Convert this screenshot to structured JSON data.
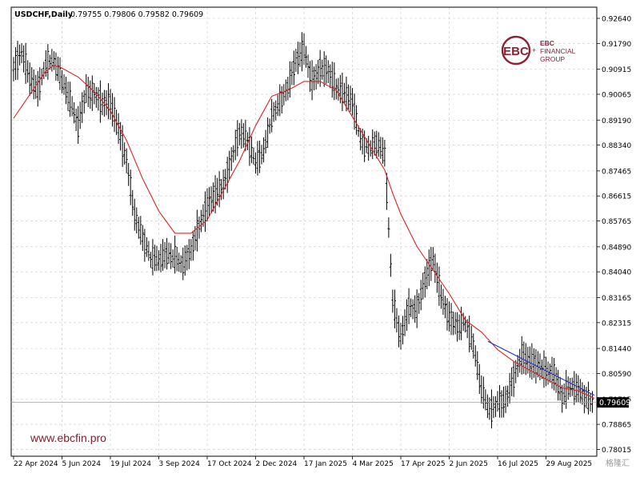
{
  "header": {
    "symbol_tf": "USDCHF,Daily",
    "ohlc": "0.79755 0.79806 0.79582 0.79609"
  },
  "branding": {
    "logo_letters": "EBC",
    "logo_line1": "EBC",
    "logo_line2": "FINANCIAL",
    "logo_line3": "GROUP",
    "website": "www.ebcfin.pro",
    "watermark": "格隆汇",
    "brand_color": "#8b2333"
  },
  "chart_data": {
    "type": "line",
    "title": "USDCHF,Daily",
    "xlabel": "",
    "ylabel": "",
    "ylim": [
      0.78,
      0.9264
    ],
    "grid": true,
    "current_price": "0.79609",
    "price_scale_position": "right",
    "y_ticks": [
      "0.92640",
      "0.91790",
      "0.90915",
      "0.90065",
      "0.89190",
      "0.88340",
      "0.87465",
      "0.86615",
      "0.85765",
      "0.84890",
      "0.84040",
      "0.83165",
      "0.82315",
      "0.81440",
      "0.80590",
      "0.79715",
      "0.78865",
      "0.78015"
    ],
    "x_ticks": [
      "22 Apr 2024",
      "5 Jun 2024",
      "19 Jul 2024",
      "3 Sep 2024",
      "17 Oct 2024",
      "2 Dec 2024",
      "17 Jan 2025",
      "4 Mar 2025",
      "17 Apr 2025",
      "2 Jun 2025",
      "16 Jul 2025",
      "29 Aug 2025"
    ],
    "x_index_range": [
      0,
      72
    ],
    "price_series": {
      "style": "bars",
      "color": "#000000",
      "x": [
        0,
        1,
        2,
        3,
        4,
        5,
        6,
        7,
        8,
        9,
        10,
        11,
        12,
        13,
        14,
        15,
        16,
        17,
        18,
        19,
        20,
        21,
        22,
        23,
        24,
        25,
        26,
        27,
        28,
        29,
        30,
        31,
        32,
        33,
        34,
        35,
        36,
        37,
        38,
        39,
        40,
        41,
        42,
        43,
        44,
        45,
        46,
        47,
        48,
        49,
        50,
        51,
        52,
        53,
        54,
        55,
        56,
        57,
        58,
        59,
        60,
        61,
        62,
        63,
        64,
        65,
        66,
        67,
        68,
        69,
        70,
        71,
        72
      ],
      "values": [
        0.91,
        0.915,
        0.906,
        0.902,
        0.911,
        0.912,
        0.905,
        0.898,
        0.89,
        0.902,
        0.901,
        0.898,
        0.898,
        0.889,
        0.878,
        0.86,
        0.852,
        0.845,
        0.844,
        0.846,
        0.845,
        0.843,
        0.848,
        0.856,
        0.863,
        0.867,
        0.87,
        0.879,
        0.888,
        0.885,
        0.877,
        0.881,
        0.893,
        0.898,
        0.903,
        0.912,
        0.916,
        0.905,
        0.91,
        0.909,
        0.903,
        0.901,
        0.898,
        0.885,
        0.882,
        0.884,
        0.88,
        0.83,
        0.818,
        0.829,
        0.828,
        0.838,
        0.845,
        0.832,
        0.825,
        0.822,
        0.823,
        0.815,
        0.8,
        0.793,
        0.796,
        0.797,
        0.805,
        0.812,
        0.81,
        0.809,
        0.807,
        0.806,
        0.798,
        0.801,
        0.8,
        0.797,
        0.796
      ]
    },
    "ma_series": {
      "name": "",
      "color": "#e02020",
      "x": [
        0,
        2,
        4,
        5,
        6,
        8,
        10,
        12,
        14,
        16,
        18,
        20,
        22,
        24,
        26,
        28,
        30,
        32,
        34,
        36,
        38,
        40,
        42,
        44,
        46,
        47,
        48,
        50,
        52,
        54,
        56,
        58,
        60,
        62,
        64,
        66,
        68,
        70,
        72
      ],
      "values": [
        0.8925,
        0.9005,
        0.9085,
        0.9105,
        0.9095,
        0.9065,
        0.9015,
        0.895,
        0.885,
        0.872,
        0.861,
        0.8535,
        0.8535,
        0.858,
        0.868,
        0.878,
        0.89,
        0.9,
        0.902,
        0.905,
        0.905,
        0.902,
        0.893,
        0.884,
        0.875,
        0.867,
        0.86,
        0.849,
        0.841,
        0.833,
        0.824,
        0.82,
        0.814,
        0.81,
        0.807,
        0.804,
        0.801,
        0.8,
        0.7975
      ]
    },
    "trendline": {
      "color": "#1f2fd8",
      "x": [
        58.8,
        72
      ],
      "values": [
        0.8168,
        0.7985
      ]
    }
  }
}
